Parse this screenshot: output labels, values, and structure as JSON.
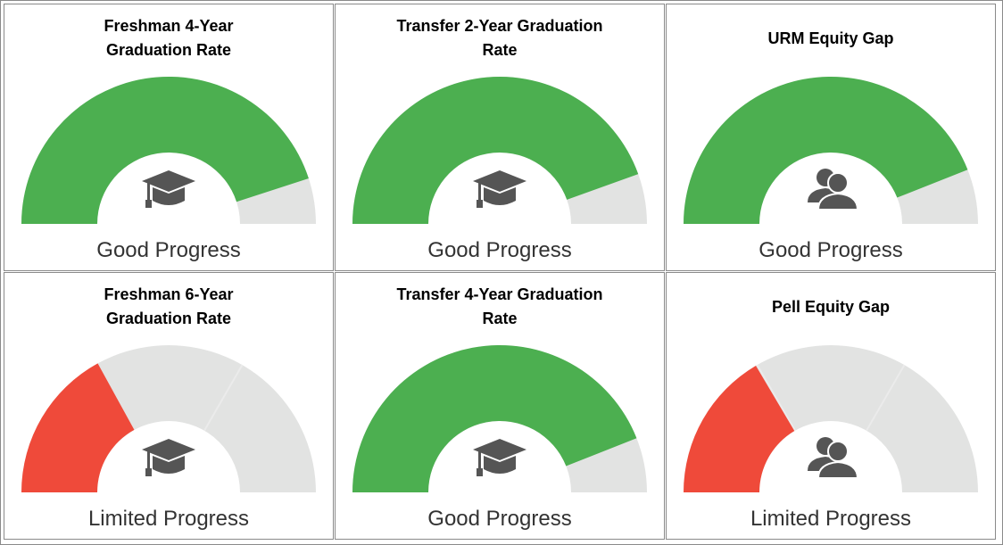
{
  "chart_data": [
    {
      "type": "gauge",
      "title": "Freshman 4-Year Graduation Rate",
      "label": "Good Progress",
      "value": 90,
      "color": "#4caf50"
    },
    {
      "type": "gauge",
      "title": "Transfer 2-Year Graduation Rate",
      "label": "Good Progress",
      "value": 89,
      "color": "#4caf50"
    },
    {
      "type": "gauge",
      "title": "URM Equity Gap",
      "label": "Good Progress",
      "value": 88,
      "color": "#4caf50"
    },
    {
      "type": "gauge",
      "title": "Freshman 6-Year Graduation Rate",
      "label": "Limited Progress",
      "value": 34,
      "color": "#ef4a3a"
    },
    {
      "type": "gauge",
      "title": "Transfer 4-Year Graduation Rate",
      "label": "Good Progress",
      "value": 88,
      "color": "#4caf50"
    },
    {
      "type": "gauge",
      "title": "Pell Equity Gap",
      "label": "Limited Progress",
      "value": 33,
      "color": "#ef4a3a"
    }
  ]
}
